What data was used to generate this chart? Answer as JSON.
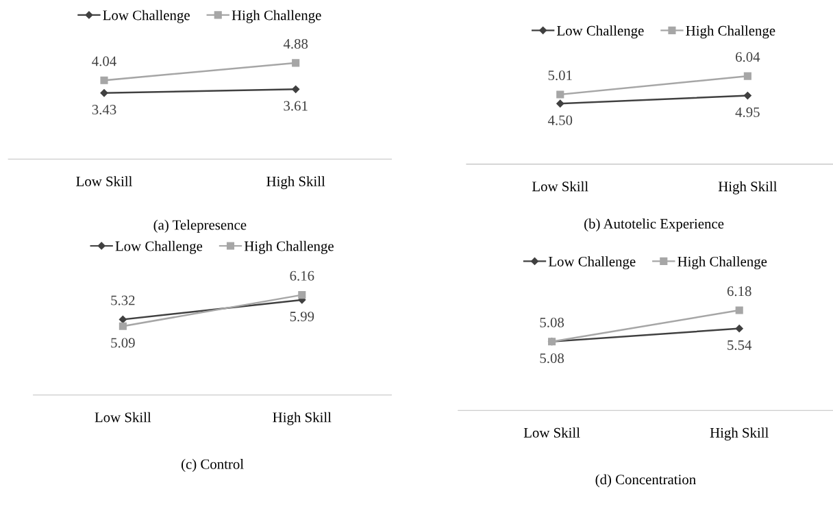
{
  "chart_data": [
    {
      "type": "line",
      "title": "(a) Telepresence",
      "categories": [
        "Low Skill",
        "High Skill"
      ],
      "data_labels": true,
      "legend": "top",
      "tick_labels": "x",
      "grid": false,
      "series": [
        {
          "name": "Low Challenge",
          "color": "#404040",
          "marker": "diamond",
          "values": [
            3.43,
            3.61
          ]
        },
        {
          "name": "High Challenge",
          "color": "#a6a6a6",
          "marker": "square",
          "values": [
            4.04,
            4.88
          ]
        }
      ]
    },
    {
      "type": "line",
      "title": "(b) Autotelic Experience",
      "categories": [
        "Low Skill",
        "High Skill"
      ],
      "data_labels": true,
      "legend": "top",
      "tick_labels": "x",
      "grid": false,
      "series": [
        {
          "name": "Low Challenge",
          "color": "#404040",
          "marker": "diamond",
          "values": [
            4.5,
            4.95
          ],
          "value_labels": [
            "4.50",
            "4.95"
          ]
        },
        {
          "name": "High Challenge",
          "color": "#a6a6a6",
          "marker": "square",
          "values": [
            5.01,
            6.04
          ]
        }
      ]
    },
    {
      "type": "line",
      "title": "(c) Control",
      "categories": [
        "Low Skill",
        "High Skill"
      ],
      "data_labels": true,
      "legend": "top",
      "tick_labels": "x",
      "grid": false,
      "series": [
        {
          "name": "Low Challenge",
          "color": "#404040",
          "marker": "diamond",
          "values": [
            5.32,
            5.99
          ]
        },
        {
          "name": "High Challenge",
          "color": "#a6a6a6",
          "marker": "square",
          "values": [
            5.09,
            6.16
          ]
        }
      ]
    },
    {
      "type": "line",
      "title": "(d) Concentration",
      "categories": [
        "Low Skill",
        "High Skill"
      ],
      "data_labels": true,
      "legend": "top",
      "tick_labels": "x",
      "grid": false,
      "series": [
        {
          "name": "Low Challenge",
          "color": "#404040",
          "marker": "diamond",
          "values": [
            5.08,
            5.54
          ]
        },
        {
          "name": "High Challenge",
          "color": "#a6a6a6",
          "marker": "square",
          "values": [
            5.08,
            6.18
          ]
        }
      ]
    }
  ]
}
